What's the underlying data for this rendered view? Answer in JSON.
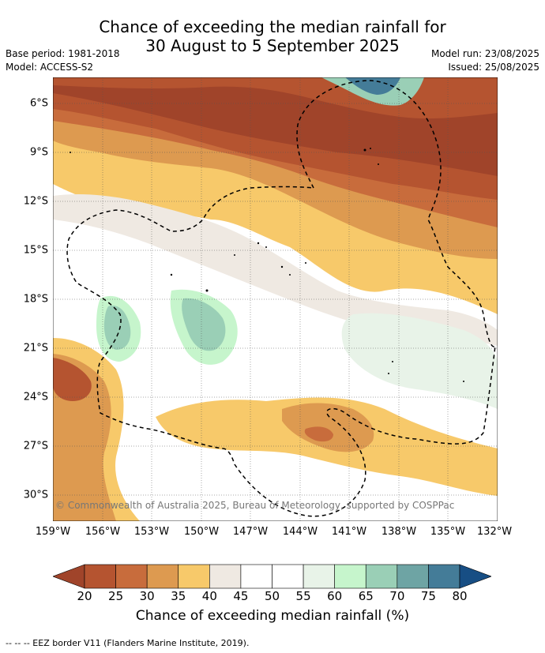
{
  "header": {
    "title_line1": "Chance of exceeding the median rainfall for",
    "title_line2": "30 August to 5 September 2025",
    "base_period": "Base period: 1981-2018",
    "model": "Model: ACCESS-S2",
    "model_run": "Model run: 23/08/2025",
    "issued": "Issued: 25/08/2025"
  },
  "map": {
    "lat_labels": [
      "6°S",
      "9°S",
      "12°S",
      "15°S",
      "18°S",
      "21°S",
      "24°S",
      "27°S",
      "30°S"
    ],
    "lon_labels": [
      "159°W",
      "156°W",
      "153°W",
      "150°W",
      "147°W",
      "144°W",
      "141°W",
      "138°W",
      "135°W",
      "132°W"
    ],
    "copyright": "© Commonwealth of Australia 2025, Bureau of Meteorology, supported by COSPPac"
  },
  "colorbar": {
    "labels": [
      "20",
      "25",
      "30",
      "35",
      "40",
      "45",
      "50",
      "55",
      "60",
      "65",
      "70",
      "75",
      "80"
    ],
    "colors": [
      "#a0442a",
      "#b55430",
      "#c86c3c",
      "#dd9a50",
      "#f7c96a",
      "#efe9e2",
      "#ffffff",
      "#ffffff",
      "#e8f3e8",
      "#c6f5cc",
      "#9acfb6",
      "#6ea4a4",
      "#447c98",
      "#174e84"
    ],
    "title": "Chance of exceeding median rainfall (%)"
  },
  "footer": "--  --  -- EEZ border V11 (Flanders Marine Institute, 2019)."
}
